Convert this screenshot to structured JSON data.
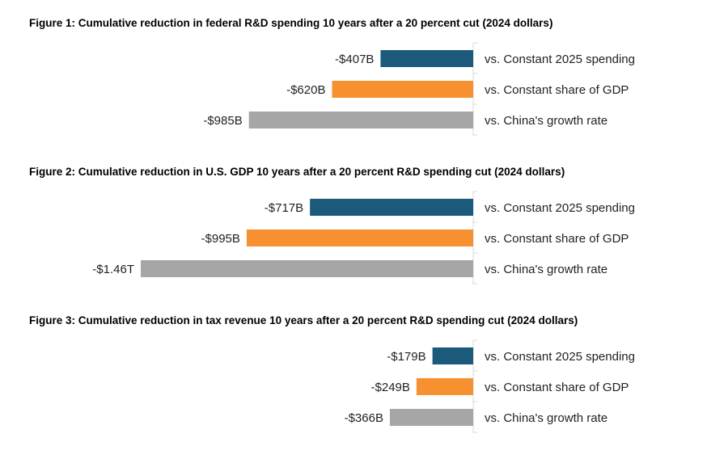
{
  "colors": {
    "series": [
      "#1b5a7a",
      "#f7912f",
      "#a6a6a6"
    ],
    "axis": "#d9d9d9"
  },
  "chart_data": [
    {
      "type": "bar",
      "orientation": "horizontal",
      "title": "Figure 1: Cumulative reduction in federal R&D spending 10 years after a 20 percent cut (2024 dollars)",
      "categories": [
        "vs. Constant 2025 spending",
        "vs. Constant share of GDP",
        "vs. China's growth rate"
      ],
      "values": [
        -407,
        -620,
        -985
      ],
      "unit": "billions of 2024 dollars",
      "data_labels": [
        "-$407B",
        "-$620B",
        "-$985B"
      ],
      "grid": false
    },
    {
      "type": "bar",
      "orientation": "horizontal",
      "title": "Figure 2: Cumulative reduction in U.S. GDP 10 years after a 20 percent R&D spending cut (2024 dollars)",
      "categories": [
        "vs. Constant 2025 spending",
        "vs. Constant share of GDP",
        "vs. China's growth rate"
      ],
      "values": [
        -717,
        -995,
        -1460
      ],
      "unit": "billions of 2024 dollars",
      "data_labels": [
        "-$717B",
        "-$995B",
        "-$1.46T"
      ],
      "grid": false
    },
    {
      "type": "bar",
      "orientation": "horizontal",
      "title": "Figure 3: Cumulative reduction in tax revenue 10 years after a 20 percent R&D spending cut (2024 dollars)",
      "categories": [
        "vs. Constant 2025 spending",
        "vs. Constant share of GDP",
        "vs. China's growth rate"
      ],
      "values": [
        -179,
        -249,
        -366
      ],
      "unit": "billions of 2024 dollars",
      "data_labels": [
        "-$179B",
        "-$249B",
        "-$366B"
      ],
      "grid": false
    }
  ]
}
